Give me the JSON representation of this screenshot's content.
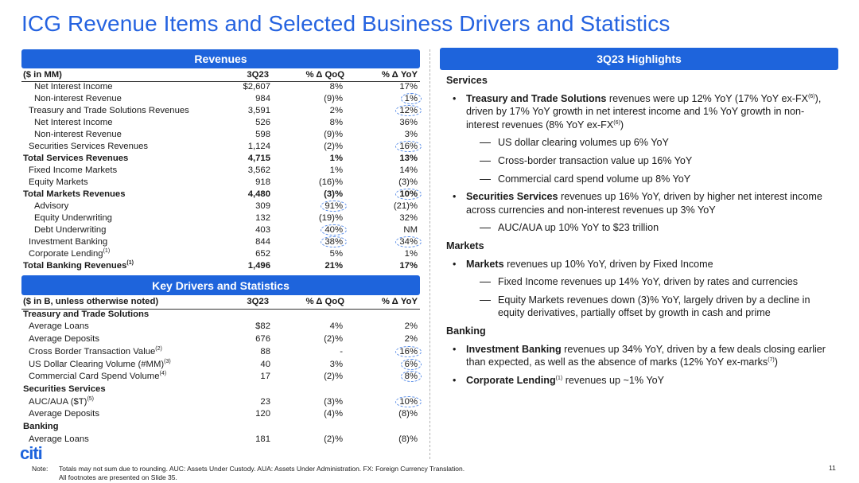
{
  "title": "ICG Revenue Items and Selected Business Drivers and Statistics",
  "revenues": {
    "header": "Revenues",
    "columns": [
      "($ in MM)",
      "3Q23",
      "% Δ QoQ",
      "% Δ YoY"
    ],
    "rows": [
      {
        "label": "Net Interest Income",
        "values": [
          "$2,607",
          "8%",
          "17%"
        ]
      },
      {
        "label": "Non-interest Revenue",
        "values": [
          "984",
          "(9)%",
          "1%"
        ]
      },
      {
        "label": "Treasury and Trade Solutions Revenues",
        "values": [
          "3,591",
          "2%",
          "12%"
        ]
      },
      {
        "label": "Net Interest Income",
        "values": [
          "526",
          "8%",
          "36%"
        ]
      },
      {
        "label": "Non-interest Revenue",
        "values": [
          "598",
          "(9)%",
          "3%"
        ]
      },
      {
        "label": "Securities Services Revenues",
        "values": [
          "1,124",
          "(2)%",
          "16%"
        ]
      },
      {
        "label": "Total Services Revenues",
        "values": [
          "4,715",
          "1%",
          "13%"
        ]
      },
      {
        "label": "Fixed Income Markets",
        "values": [
          "3,562",
          "1%",
          "14%"
        ]
      },
      {
        "label": "Equity Markets",
        "values": [
          "918",
          "(16)%",
          "(3)%"
        ]
      },
      {
        "label": "Total Markets Revenues",
        "values": [
          "4,480",
          "(3)%",
          "10%"
        ]
      },
      {
        "label": "Advisory",
        "values": [
          "309",
          "91%",
          "(21)%"
        ]
      },
      {
        "label": "Equity Underwriting",
        "values": [
          "132",
          "(19)%",
          "32%"
        ]
      },
      {
        "label": "Debt Underwriting",
        "values": [
          "403",
          "40%",
          "NM"
        ]
      },
      {
        "label": "Investment Banking",
        "values": [
          "844",
          "38%",
          "34%"
        ]
      },
      {
        "label": "Corporate Lending",
        "note": "(1)",
        "values": [
          "652",
          "5%",
          "1%"
        ]
      },
      {
        "label": "Total Banking Revenues",
        "note": "(1)",
        "values": [
          "1,496",
          "21%",
          "17%"
        ]
      }
    ]
  },
  "drivers": {
    "header": "Key Drivers and Statistics",
    "columns": [
      "($ in B, unless otherwise noted)",
      "3Q23",
      "% Δ QoQ",
      "% Δ YoY"
    ],
    "rows": [
      {
        "label": "Treasury and Trade Solutions"
      },
      {
        "label": "Average Loans",
        "values": [
          "$82",
          "4%",
          "2%"
        ]
      },
      {
        "label": "Average Deposits",
        "values": [
          "676",
          "(2)%",
          "2%"
        ]
      },
      {
        "label": "Cross Border Transaction Value",
        "note": "(2)",
        "values": [
          "88",
          "-",
          "16%"
        ]
      },
      {
        "label": "US Dollar Clearing Volume (#MM)",
        "note": "(3)",
        "values": [
          "40",
          "3%",
          "6%"
        ]
      },
      {
        "label": "Commercial Card Spend Volume",
        "note": "(4)",
        "values": [
          "17",
          "(2)%",
          "8%"
        ]
      },
      {
        "label": "Securities Services"
      },
      {
        "label": "AUC/AUA ($T)",
        "note": "(5)",
        "values": [
          "23",
          "(3)%",
          "10%"
        ]
      },
      {
        "label": "Average Deposits",
        "values": [
          "120",
          "(4)%",
          "(8)%"
        ]
      },
      {
        "label": "Banking"
      },
      {
        "label": "Average Loans",
        "values": [
          "181",
          "(2)%",
          "(8)%"
        ]
      }
    ]
  },
  "highlights": {
    "header": "3Q23 Highlights",
    "sections": [
      {
        "heading": "Services",
        "bullets": [
          {
            "parts": [
              {
                "bold": "Treasury and Trade Solutions"
              },
              {
                "text": " revenues were up 12% YoY (17% YoY ex-FX"
              },
              {
                "sup": "(6)"
              },
              {
                "text": "), driven by 17% YoY growth in net interest income and 1% YoY growth in non-interest revenues (8% YoY ex-FX"
              },
              {
                "sup": "(6)"
              },
              {
                "text": ")"
              }
            ],
            "subs": [
              "US dollar clearing volumes up 6% YoY",
              "Cross-border transaction value up 16% YoY",
              "Commercial card spend volume up 8% YoY"
            ]
          },
          {
            "parts": [
              {
                "bold": "Securities Services"
              },
              {
                "text": " revenues up 16% YoY, driven by higher net interest income across currencies and non-interest revenues up 3% YoY"
              }
            ],
            "subs": [
              "AUC/AUA up 10% YoY to $23 trillion"
            ]
          }
        ]
      },
      {
        "heading": "Markets",
        "bullets": [
          {
            "parts": [
              {
                "bold": "Markets"
              },
              {
                "text": " revenues up 10% YoY, driven by Fixed Income"
              }
            ],
            "subs": [
              "Fixed Income revenues up 14% YoY, driven by rates and currencies",
              "Equity Markets revenues down (3)% YoY, largely driven by a decline in equity derivatives, partially offset by growth in cash and prime"
            ]
          }
        ]
      },
      {
        "heading": "Banking",
        "bullets": [
          {
            "parts": [
              {
                "bold": "Investment Banking"
              },
              {
                "text": " revenues up 34% YoY, driven by a few deals closing earlier than expected, as well as the absence of marks (12% YoY ex-marks"
              },
              {
                "sup": "(7)"
              },
              {
                "text": ")"
              }
            ]
          },
          {
            "parts": [
              {
                "bold": "Corporate Lending"
              },
              {
                "sup": "(1)"
              },
              {
                "text": " revenues up ~1% YoY"
              }
            ]
          }
        ]
      }
    ]
  },
  "footer": {
    "logo": "citi",
    "note_label": "Note:",
    "note_lines": [
      "Totals may not sum due to rounding. AUC: Assets Under Custody. AUA: Assets Under Administration. FX: Foreign Currency Translation.",
      "All footnotes are presented on Slide 35."
    ],
    "page": "11"
  }
}
